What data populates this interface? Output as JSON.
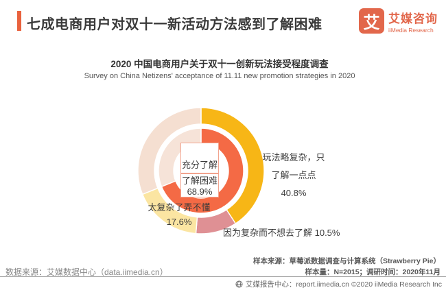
{
  "header": {
    "title": "七成电商用户对双十一新活动方法感到了解困难",
    "logo": {
      "mark": "艾",
      "name_cn": "艾媒咨询",
      "name_en": "iiMedia Research"
    }
  },
  "chart": {
    "title": "2020 中国电商用户关于双十一创新玩法接受程度调查",
    "subtitle": "Survey on China Netizens' acceptance of 11.11 new promotion strategies in 2020"
  },
  "chart_data": {
    "type": "pie",
    "variant": "double-ring-donut",
    "title": "2020 中国电商用户关于双十一创新玩法接受程度调查",
    "subtitle": "Survey on China Netizens' acceptance of 11.11 new promotion strategies in 2020",
    "unit": "%",
    "legend_position": "none",
    "start_angle_deg": 0,
    "direction": "clockwise",
    "rings": [
      {
        "name": "outer",
        "segments": [
          {
            "label": "玩法略复杂，只了解一点点",
            "value": 40.8,
            "color": "#F7B616"
          },
          {
            "label": "因为复杂而不想去了解",
            "value": 10.5,
            "color": "#DF9094"
          },
          {
            "label": "太复杂了弄不懂",
            "value": 17.6,
            "color": "#FBE5A2"
          },
          {
            "label": "充分了解",
            "value": 31.1,
            "color": "#F5DFD1"
          }
        ]
      },
      {
        "name": "inner",
        "segments": [
          {
            "label": "了解困难",
            "value": 68.9,
            "color": "#F46A45"
          },
          {
            "label": "充分了解",
            "value": 31.1,
            "color": "#F6E3D8"
          }
        ]
      }
    ],
    "center_labels": {
      "fully_understand": {
        "text": "充分了解"
      },
      "difficult": {
        "text": "了解困难",
        "value": "68.9%"
      }
    },
    "callouts": {
      "right": {
        "line1": "玩法略复杂，只",
        "line2": "了解一点点",
        "value": "40.8%"
      },
      "bottom_left": {
        "line1": "太复杂了弄不懂",
        "value": "17.6%"
      },
      "bottom_right": {
        "text": "因为复杂而不想去了解 10.5%"
      }
    }
  },
  "footer": {
    "data_source": "数据来源：艾媒数据中心（data.iimedia.cn）",
    "sample_source": "样本来源：草莓派数据调查与计算系统（Strawberry Pie）",
    "sample_info": "样本量：N=2015；调研时间：2020年11月",
    "report_center": "艾媒报告中心：report.iimedia.cn ©2020 iiMedia Research Inc"
  },
  "colors": {
    "accent": "#E9623E",
    "logo_orange": "#E2674B",
    "inner_ring_main": "#F46A45",
    "outer_gold": "#F7B616",
    "outer_rose": "#DF9094",
    "outer_light_yellow": "#FBE5A2",
    "outer_peach": "#F5DFD1",
    "center_box_border": "#F2A38E"
  }
}
